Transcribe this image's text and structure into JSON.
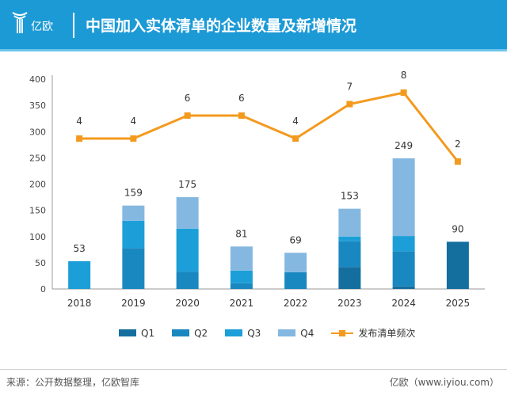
{
  "header": {
    "logo_text": "亿欧",
    "title": "中国加入实体清单的企业数量及新增情况"
  },
  "footer": {
    "source": "来源：公开数据整理，亿欧智库",
    "site": "亿欧（www.iyiou.com）"
  },
  "colors": {
    "Q1": "#146f9f",
    "Q2": "#1a88c0",
    "Q3": "#1c9fd8",
    "Q4": "#84b8e0",
    "line": "#f39a1e",
    "header": "#1c9ad6"
  },
  "chart_data": {
    "type": "bar",
    "categories": [
      "2018",
      "2019",
      "2020",
      "2021",
      "2022",
      "2023",
      "2024",
      "2025"
    ],
    "ylim": [
      0,
      400
    ],
    "yticks": [
      0,
      50,
      100,
      150,
      200,
      250,
      300,
      350,
      400
    ],
    "grid": false,
    "legend_position": "bottom",
    "stacked": true,
    "series": [
      {
        "name": "Q1",
        "values": [
          0,
          0,
          0,
          0,
          0,
          42,
          5,
          90
        ]
      },
      {
        "name": "Q2",
        "values": [
          0,
          78,
          33,
          11,
          32,
          49,
          67,
          0
        ]
      },
      {
        "name": "Q3",
        "values": [
          53,
          52,
          82,
          24,
          0,
          9,
          29,
          0
        ]
      },
      {
        "name": "Q4",
        "values": [
          0,
          29,
          60,
          46,
          37,
          53,
          148,
          0
        ]
      }
    ],
    "totals": [
      53,
      159,
      175,
      81,
      69,
      153,
      249,
      90
    ],
    "line_series": {
      "name": "发布清单频次",
      "values": [
        4,
        4,
        6,
        6,
        4,
        7,
        8,
        2
      ],
      "axis": "secondary-hidden"
    }
  }
}
